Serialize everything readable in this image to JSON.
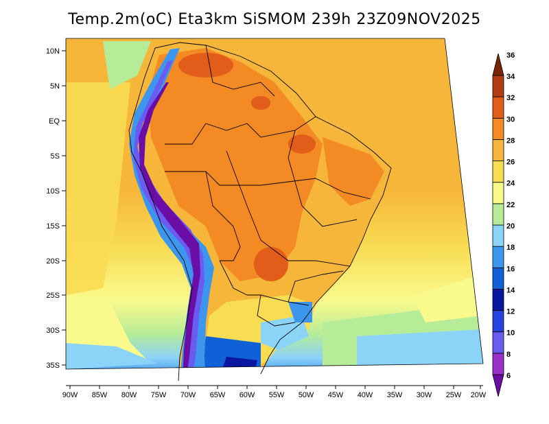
{
  "title": "Temp.2m(oC) Eta3km SiSMOM 239h 23Z09NOV2025",
  "lat_ticks": [
    "10N",
    "5N",
    "EQ",
    "5S",
    "10S",
    "15S",
    "20S",
    "25S",
    "30S",
    "35S"
  ],
  "lon_ticks": [
    "90W",
    "85W",
    "80W",
    "75W",
    "70W",
    "65W",
    "60W",
    "55W",
    "50W",
    "45W",
    "40W",
    "35W",
    "30W",
    "25W",
    "20W"
  ],
  "colorbar": {
    "labels": [
      "6",
      "8",
      "10",
      "12",
      "14",
      "16",
      "18",
      "20",
      "22",
      "24",
      "26",
      "28",
      "30",
      "32",
      "34",
      "36"
    ],
    "colors": [
      "#6a0ea6",
      "#9b30c6",
      "#6a5cf0",
      "#2244dd",
      "#0a16a0",
      "#1060d8",
      "#3c96ee",
      "#8cd3f8",
      "#b6ec98",
      "#fafa8c",
      "#f8dc52",
      "#f6b63a",
      "#f48a24",
      "#e25c1a",
      "#b43c12",
      "#7a2408"
    ]
  },
  "colors": {
    "ocean_north": "#f6b63a",
    "ocean_south": "#f8dc52",
    "ocean_far_south": "#8cd3f8",
    "andes": "#6a0ea6",
    "amazon": "#f48a24"
  }
}
